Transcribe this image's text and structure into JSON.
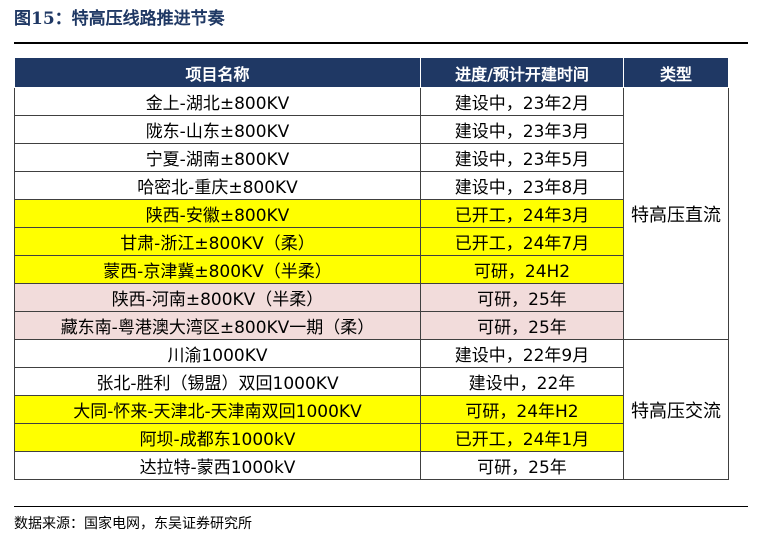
{
  "figure_title": "图15：特高压线路推进节奏",
  "table": {
    "headers": [
      "项目名称",
      "进度/预计开建时间",
      "类型"
    ],
    "rows": [
      {
        "name": "金上-湖北±800KV",
        "progress": "建设中，23年2月",
        "type": "特高压直流",
        "highlight": "white"
      },
      {
        "name": "陇东-山东±800KV",
        "progress": "建设中，23年3月",
        "type": "特高压直流",
        "highlight": "white"
      },
      {
        "name": "宁夏-湖南±800KV",
        "progress": "建设中，23年5月",
        "type": "特高压直流",
        "highlight": "white"
      },
      {
        "name": "哈密北-重庆±800KV",
        "progress": "建设中，23年8月",
        "type": "特高压直流",
        "highlight": "white"
      },
      {
        "name": "陕西-安徽±800KV",
        "progress": "已开工，24年3月",
        "type": "特高压直流",
        "highlight": "yellow"
      },
      {
        "name": "甘肃-浙江±800KV（柔）",
        "progress": "已开工，24年7月",
        "type": "特高压直流",
        "highlight": "yellow"
      },
      {
        "name": "蒙西-京津冀±800KV（半柔）",
        "progress": "可研，24H2",
        "type": "特高压直流",
        "highlight": "yellow"
      },
      {
        "name": "陕西-河南±800KV（半柔）",
        "progress": "可研，25年",
        "type": "特高压直流",
        "highlight": "pink"
      },
      {
        "name": "藏东南-粤港澳大湾区±800KV一期（柔）",
        "progress": "可研，25年",
        "type": "特高压直流",
        "highlight": "pink"
      },
      {
        "name": "川渝1000KV",
        "progress": "建设中，22年9月",
        "type": "特高压交流",
        "highlight": "white"
      },
      {
        "name": "张北-胜利（锡盟）双回1000KV",
        "progress": "建设中，22年",
        "type": "特高压交流",
        "highlight": "white"
      },
      {
        "name": "大同-怀来-天津北-天津南双回1000KV",
        "progress": "可研，24年H2",
        "type": "特高压交流",
        "highlight": "yellow"
      },
      {
        "name": "阿坝-成都东1000kV",
        "progress": "已开工，24年1月",
        "type": "特高压交流",
        "highlight": "yellow"
      },
      {
        "name": "达拉特-蒙西1000kV",
        "progress": "可研，25年",
        "type": "特高压交流",
        "highlight": "white"
      }
    ],
    "type_groups": [
      {
        "label": "特高压直流",
        "rowspan": 9
      },
      {
        "label": "特高压交流",
        "rowspan": 5
      }
    ]
  },
  "colors": {
    "header_bg": "#1f3864",
    "yellow": "#ffff00",
    "pink": "#f2dcdb",
    "title": "#1f3864"
  },
  "source": "数据来源：国家电网，东吴证券研究所"
}
